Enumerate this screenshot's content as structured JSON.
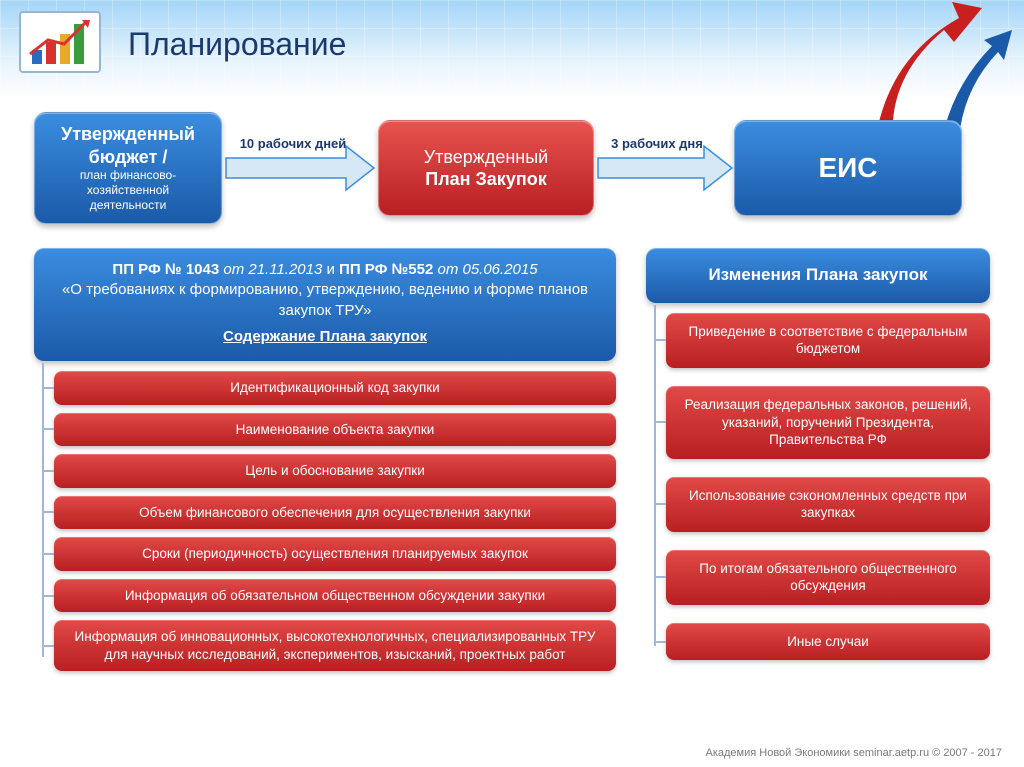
{
  "title": "Планирование",
  "colors": {
    "blue_top": "#3b8de0",
    "blue_bottom": "#1b5aa8",
    "red_top": "#e14a47",
    "red_bottom": "#b81f22",
    "arrow_fill": "#d6e7f6",
    "arrow_stroke": "#3b8de0",
    "title_color": "#1a3a6e",
    "bg_header_top": "#a3d5f7",
    "connector": "#9eb8da"
  },
  "flow": {
    "box1": {
      "line1": "Утвержденный",
      "line2": "бюджет /",
      "line3": "план финансово-хозяйственной деятельности"
    },
    "arrow1_label": "10 рабочих дней",
    "box2": {
      "line1": "Утвержденный",
      "line2": "План Закупок"
    },
    "arrow2_label": "3 рабочих дня",
    "box3": "ЕИС"
  },
  "left": {
    "header_part1_bold": "ПП РФ № 1043",
    "header_part1_ital": " от 21.11.2013 ",
    "header_part1_mid": "и ",
    "header_part2_bold": "ПП РФ №552",
    "header_part2_ital": " от 05.06.2015",
    "header_line2": "«О требованиях к формированию, утверждению, ведению и форме планов закупок ТРУ»",
    "header_underline": "Содержание Плана закупок",
    "items": [
      "Идентификационный код закупки",
      "Наименование объекта закупки",
      "Цель и обоснование закупки",
      "Объем финансового обеспечения для осуществления закупки",
      "Сроки (периодичность) осуществления планируемых закупок",
      "Информация об обязательном общественном обсуждении закупки",
      "Информация об инновационных, высокотехнологичных, специализированных ТРУ для научных исследований, экспериментов, изысканий, проектных работ"
    ]
  },
  "right": {
    "header": "Изменения Плана закупок",
    "items": [
      "Приведение в соответствие с федеральным бюджетом",
      "Реализация федеральных законов, решений, указаний, поручений Президента, Правительства РФ",
      "Использование сэкономленных средств при закупках",
      "По итогам обязательного общественного обсуждения",
      "Иные случаи"
    ]
  },
  "footer": "Академия Новой Экономики seminar.aetp.ru © 2007 - 2017"
}
